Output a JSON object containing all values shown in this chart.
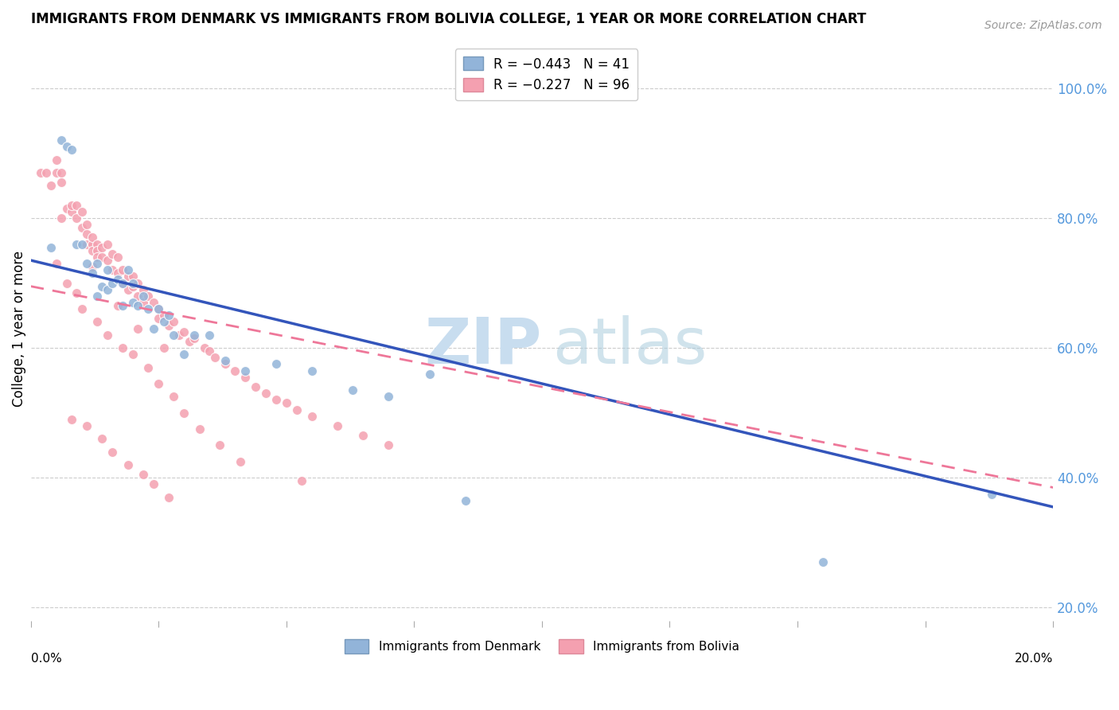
{
  "title": "IMMIGRANTS FROM DENMARK VS IMMIGRANTS FROM BOLIVIA COLLEGE, 1 YEAR OR MORE CORRELATION CHART",
  "source": "Source: ZipAtlas.com",
  "ylabel": "College, 1 year or more",
  "right_yticks": [
    "100.0%",
    "80.0%",
    "60.0%",
    "40.0%",
    "20.0%"
  ],
  "right_ytick_vals": [
    1.0,
    0.8,
    0.6,
    0.4,
    0.2
  ],
  "legend_denmark": "R = −0.443   N = 41",
  "legend_bolivia": "R = −0.227   N = 96",
  "denmark_color": "#92B4D9",
  "bolivia_color": "#F4A0B0",
  "denmark_line_color": "#3355BB",
  "bolivia_line_color": "#EE7799",
  "xlim": [
    0.0,
    0.2
  ],
  "ylim": [
    0.18,
    1.08
  ],
  "denmark_trendline_x": [
    0.0,
    0.2
  ],
  "denmark_trendline_y": [
    0.735,
    0.355
  ],
  "bolivia_trendline_x": [
    0.0,
    0.2
  ],
  "bolivia_trendline_y": [
    0.695,
    0.385
  ],
  "denmark_scatter_x": [
    0.004,
    0.006,
    0.007,
    0.008,
    0.009,
    0.01,
    0.011,
    0.012,
    0.013,
    0.014,
    0.015,
    0.015,
    0.016,
    0.017,
    0.018,
    0.018,
    0.019,
    0.02,
    0.021,
    0.022,
    0.023,
    0.024,
    0.025,
    0.026,
    0.028,
    0.03,
    0.032,
    0.035,
    0.038,
    0.042,
    0.048,
    0.055,
    0.063,
    0.07,
    0.078,
    0.085,
    0.155,
    0.188,
    0.013,
    0.02,
    0.027
  ],
  "denmark_scatter_y": [
    0.755,
    0.92,
    0.91,
    0.905,
    0.76,
    0.76,
    0.73,
    0.715,
    0.73,
    0.695,
    0.72,
    0.69,
    0.7,
    0.705,
    0.665,
    0.7,
    0.72,
    0.67,
    0.665,
    0.68,
    0.66,
    0.63,
    0.66,
    0.64,
    0.62,
    0.59,
    0.62,
    0.62,
    0.58,
    0.565,
    0.575,
    0.565,
    0.535,
    0.525,
    0.56,
    0.365,
    0.27,
    0.375,
    0.68,
    0.7,
    0.65
  ],
  "bolivia_scatter_x": [
    0.002,
    0.003,
    0.004,
    0.005,
    0.005,
    0.006,
    0.006,
    0.007,
    0.008,
    0.008,
    0.009,
    0.009,
    0.01,
    0.01,
    0.011,
    0.011,
    0.011,
    0.012,
    0.012,
    0.012,
    0.013,
    0.013,
    0.013,
    0.014,
    0.014,
    0.015,
    0.015,
    0.016,
    0.016,
    0.017,
    0.017,
    0.018,
    0.018,
    0.019,
    0.019,
    0.02,
    0.02,
    0.021,
    0.021,
    0.022,
    0.022,
    0.023,
    0.024,
    0.025,
    0.025,
    0.026,
    0.027,
    0.028,
    0.029,
    0.03,
    0.031,
    0.032,
    0.034,
    0.035,
    0.036,
    0.038,
    0.04,
    0.042,
    0.044,
    0.046,
    0.048,
    0.05,
    0.052,
    0.055,
    0.06,
    0.065,
    0.07,
    0.005,
    0.007,
    0.009,
    0.01,
    0.013,
    0.015,
    0.018,
    0.02,
    0.023,
    0.025,
    0.028,
    0.008,
    0.011,
    0.014,
    0.016,
    0.019,
    0.022,
    0.024,
    0.027,
    0.006,
    0.012,
    0.017,
    0.021,
    0.026,
    0.03,
    0.033,
    0.037,
    0.041,
    0.053
  ],
  "bolivia_scatter_y": [
    0.87,
    0.87,
    0.85,
    0.89,
    0.87,
    0.87,
    0.855,
    0.815,
    0.81,
    0.82,
    0.8,
    0.82,
    0.81,
    0.785,
    0.79,
    0.775,
    0.76,
    0.76,
    0.75,
    0.77,
    0.76,
    0.75,
    0.74,
    0.755,
    0.74,
    0.76,
    0.735,
    0.745,
    0.72,
    0.74,
    0.715,
    0.72,
    0.7,
    0.71,
    0.69,
    0.71,
    0.695,
    0.7,
    0.68,
    0.69,
    0.67,
    0.68,
    0.67,
    0.66,
    0.645,
    0.65,
    0.635,
    0.64,
    0.62,
    0.625,
    0.61,
    0.615,
    0.6,
    0.595,
    0.585,
    0.575,
    0.565,
    0.555,
    0.54,
    0.53,
    0.52,
    0.515,
    0.505,
    0.495,
    0.48,
    0.465,
    0.45,
    0.73,
    0.7,
    0.685,
    0.66,
    0.64,
    0.62,
    0.6,
    0.59,
    0.57,
    0.545,
    0.525,
    0.49,
    0.48,
    0.46,
    0.44,
    0.42,
    0.405,
    0.39,
    0.37,
    0.8,
    0.725,
    0.665,
    0.63,
    0.6,
    0.5,
    0.475,
    0.45,
    0.425,
    0.395
  ]
}
